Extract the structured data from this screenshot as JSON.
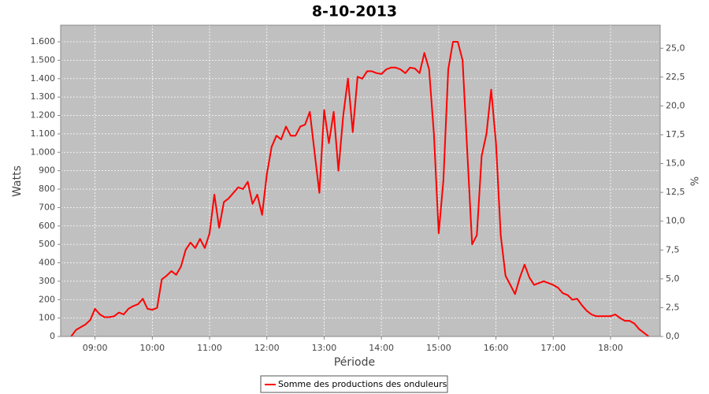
{
  "chart_data": {
    "type": "line",
    "title": "8-10-2013",
    "x_label": "Période",
    "y_label": "Watts",
    "y2_label": "%",
    "x": [
      "08:35",
      "08:40",
      "08:45",
      "08:50",
      "08:55",
      "09:00",
      "09:05",
      "09:10",
      "09:15",
      "09:20",
      "09:25",
      "09:30",
      "09:35",
      "09:40",
      "09:45",
      "09:50",
      "09:55",
      "10:00",
      "10:05",
      "10:10",
      "10:15",
      "10:20",
      "10:25",
      "10:30",
      "10:35",
      "10:40",
      "10:45",
      "10:50",
      "10:55",
      "11:00",
      "11:05",
      "11:10",
      "11:15",
      "11:20",
      "11:25",
      "11:30",
      "11:35",
      "11:40",
      "11:45",
      "11:50",
      "11:55",
      "12:00",
      "12:05",
      "12:10",
      "12:15",
      "12:20",
      "12:25",
      "12:30",
      "12:35",
      "12:40",
      "12:45",
      "12:50",
      "12:55",
      "13:00",
      "13:05",
      "13:10",
      "13:15",
      "13:20",
      "13:25",
      "13:30",
      "13:35",
      "13:40",
      "13:45",
      "13:50",
      "13:55",
      "14:00",
      "14:05",
      "14:10",
      "14:15",
      "14:20",
      "14:25",
      "14:30",
      "14:35",
      "14:40",
      "14:45",
      "14:50",
      "14:55",
      "15:00",
      "15:05",
      "15:10",
      "15:15",
      "15:20",
      "15:25",
      "15:30",
      "15:35",
      "15:40",
      "15:45",
      "15:50",
      "15:55",
      "16:00",
      "16:05",
      "16:10",
      "16:15",
      "16:20",
      "16:25",
      "16:30",
      "16:35",
      "16:40",
      "16:45",
      "16:50",
      "16:55",
      "17:00",
      "17:05",
      "17:10",
      "17:15",
      "17:20",
      "17:25",
      "17:30",
      "17:35",
      "17:40",
      "17:45",
      "17:50",
      "17:55",
      "18:00",
      "18:05",
      "18:10",
      "18:15",
      "18:20",
      "18:25",
      "18:30",
      "18:35",
      "18:40"
    ],
    "series": [
      {
        "name": "Somme des productions des onduleurs",
        "color": "#ff0000",
        "values": [
          0,
          35,
          50,
          65,
          90,
          150,
          120,
          105,
          105,
          110,
          130,
          120,
          150,
          165,
          175,
          205,
          150,
          145,
          155,
          310,
          330,
          355,
          335,
          380,
          470,
          510,
          480,
          530,
          480,
          560,
          770,
          590,
          730,
          750,
          780,
          810,
          800,
          840,
          720,
          770,
          660,
          880,
          1030,
          1090,
          1070,
          1140,
          1090,
          1090,
          1140,
          1150,
          1220,
          1000,
          780,
          1230,
          1050,
          1220,
          900,
          1200,
          1400,
          1110,
          1410,
          1400,
          1440,
          1440,
          1430,
          1425,
          1450,
          1460,
          1460,
          1450,
          1430,
          1460,
          1455,
          1430,
          1540,
          1450,
          1100,
          560,
          850,
          1450,
          1600,
          1600,
          1500,
          1000,
          500,
          550,
          980,
          1100,
          1340,
          1050,
          550,
          330,
          280,
          230,
          320,
          390,
          320,
          280,
          290,
          300,
          290,
          280,
          265,
          235,
          225,
          200,
          205,
          170,
          140,
          120,
          110,
          110,
          110,
          110,
          120,
          100,
          85,
          85,
          70,
          40,
          20,
          0
        ]
      }
    ],
    "xlim": [
      "08:24",
      "18:52"
    ],
    "xticks": [
      "09:00",
      "10:00",
      "11:00",
      "12:00",
      "13:00",
      "14:00",
      "15:00",
      "16:00",
      "17:00",
      "18:00"
    ],
    "ylim": [
      0,
      1690
    ],
    "yticks": [
      0,
      100,
      200,
      300,
      400,
      500,
      600,
      700,
      800,
      900,
      {
        "value": 1000,
        "label": "1.000"
      },
      {
        "value": 1100,
        "label": "1.100"
      },
      {
        "value": 1200,
        "label": "1.200"
      },
      {
        "value": 1300,
        "label": "1.300"
      },
      {
        "value": 1400,
        "label": "1.400"
      },
      {
        "value": 1500,
        "label": "1.500"
      },
      {
        "value": 1600,
        "label": "1.600"
      }
    ],
    "y2lim": [
      0,
      27
    ],
    "y2ticks": [
      {
        "value": 0,
        "label": "0,0"
      },
      {
        "value": 2.5,
        "label": "2,5"
      },
      {
        "value": 5,
        "label": "5,0"
      },
      {
        "value": 7.5,
        "label": "7,5"
      },
      {
        "value": 10,
        "label": "10,0"
      },
      {
        "value": 12.5,
        "label": "12,5"
      },
      {
        "value": 15,
        "label": "15,0"
      },
      {
        "value": 17.5,
        "label": "17,5"
      },
      {
        "value": 20,
        "label": "20,0"
      },
      {
        "value": 22.5,
        "label": "22,5"
      },
      {
        "value": 25,
        "label": "25,0"
      }
    ],
    "grid": true,
    "legend": "bottom"
  }
}
